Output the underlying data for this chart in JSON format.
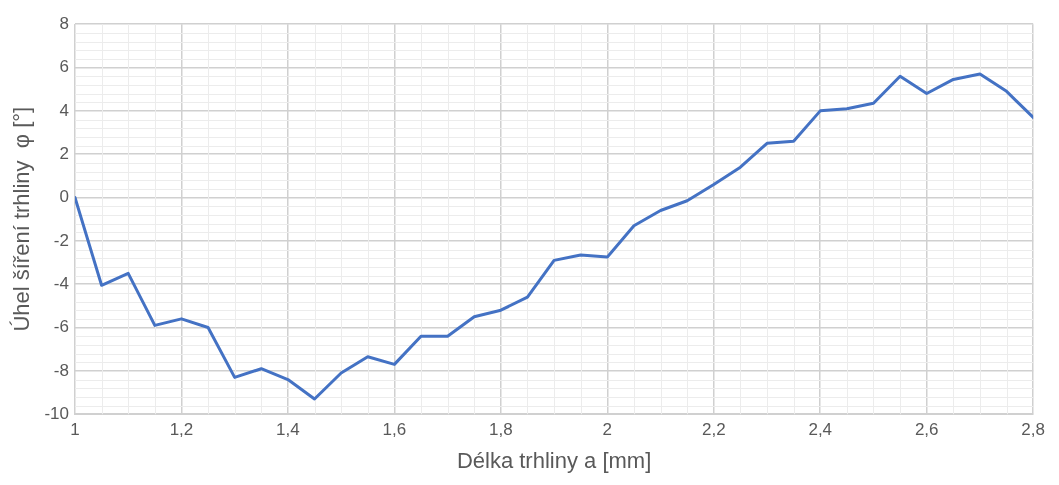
{
  "chart_data": {
    "type": "line",
    "xlabel": "Délka trhliny a [mm]",
    "ylabel": "Úhel šíření trhliny  φ [°]",
    "x": [
      1,
      1.05,
      1.1,
      1.15,
      1.2,
      1.25,
      1.3,
      1.35,
      1.4,
      1.45,
      1.5,
      1.55,
      1.6,
      1.65,
      1.7,
      1.75,
      1.8,
      1.85,
      1.9,
      1.95,
      2,
      2.05,
      2.1,
      2.15,
      2.2,
      2.25,
      2.3,
      2.35,
      2.4,
      2.45,
      2.5,
      2.55,
      2.6,
      2.65,
      2.7,
      2.75,
      2.8
    ],
    "series": [
      {
        "color": "#4472c4",
        "values": [
          0,
          -4.05,
          -3.5,
          -5.9,
          -5.6,
          -6,
          -8.3,
          -7.9,
          -8.4,
          -9.3,
          -8.1,
          -7.35,
          -7.7,
          -6.4,
          -6.4,
          -5.5,
          -5.2,
          -4.6,
          -2.9,
          -2.65,
          -2.75,
          -1.3,
          -0.6,
          -0.15,
          0.6,
          1.4,
          2.5,
          2.6,
          4,
          4.1,
          4.35,
          5.6,
          4.8,
          5.45,
          5.7,
          4.9,
          3.7
        ]
      }
    ],
    "xlim": [
      1,
      2.8
    ],
    "xticks": [
      1,
      {
        "value": 1.2,
        "label": "1,2"
      },
      {
        "value": 1.4,
        "label": "1,4"
      },
      {
        "value": 1.6,
        "label": "1,6"
      },
      {
        "value": 1.8,
        "label": "1,8"
      },
      2,
      {
        "value": 2.2,
        "label": "2,2"
      },
      {
        "value": 2.4,
        "label": "2,4"
      },
      {
        "value": 2.6,
        "label": "2,6"
      },
      {
        "value": 2.8,
        "label": "2,8"
      }
    ],
    "ylim": [
      -10,
      8
    ],
    "yticks": [
      -10,
      -8,
      -6,
      -4,
      -2,
      0,
      2,
      4,
      6,
      8
    ],
    "grid": true,
    "legend": false,
    "marker": "none",
    "line_style": "solid"
  }
}
